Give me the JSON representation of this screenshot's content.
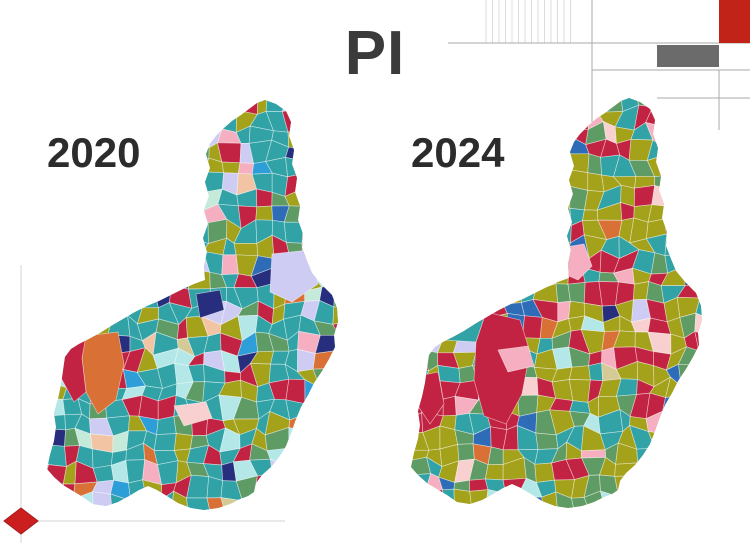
{
  "title": "PI",
  "subtitle_meaning": "choropleth comparison of Piaui municipalities",
  "maps": [
    {
      "year": 2020,
      "label": "2020",
      "base": "teal",
      "weights": {
        "teal": 38,
        "olive": 15,
        "crimson": 11,
        "seagreen": 7,
        "lavender": 7,
        "lightcyan": 4,
        "navy": 3,
        "royalblue": 2,
        "skyblue": 2,
        "pink": 2,
        "peach": 2,
        "orange": 3,
        "tan": 2,
        "mint": 2
      }
    },
    {
      "year": 2024,
      "label": "2024",
      "base": "olive",
      "weights": {
        "olive": 33,
        "crimson": 21,
        "seagreen": 17,
        "teal": 15,
        "royalblue": 4,
        "pink": 3,
        "palepink": 2,
        "orange": 1,
        "lavender": 1,
        "lightcyan": 1,
        "navy": 1,
        "tan": 1
      }
    }
  ],
  "palette": {
    "teal": "#31a2a6",
    "olive": "#a4a11b",
    "crimson": "#c32342",
    "seagreen": "#5f9b64",
    "navy": "#272e7d",
    "royalblue": "#2e6cb8",
    "skyblue": "#2e9ed8",
    "lavender": "#cfccf4",
    "lightcyan": "#b4e8e8",
    "pink": "#f5afc0",
    "palepink": "#f8d0cf",
    "peach": "#f2c4a4",
    "orange": "#d97136",
    "tan": "#d5c995",
    "mint": "#c5ead9"
  },
  "decor": {
    "accent_red": "#c22318",
    "block_gray": "#6b6b6b",
    "line_gray": "#a8a8a8",
    "faint_line": "#dcdcdc",
    "diamond_red": "#cb1f1f",
    "text_color": "#3b3b3b"
  }
}
